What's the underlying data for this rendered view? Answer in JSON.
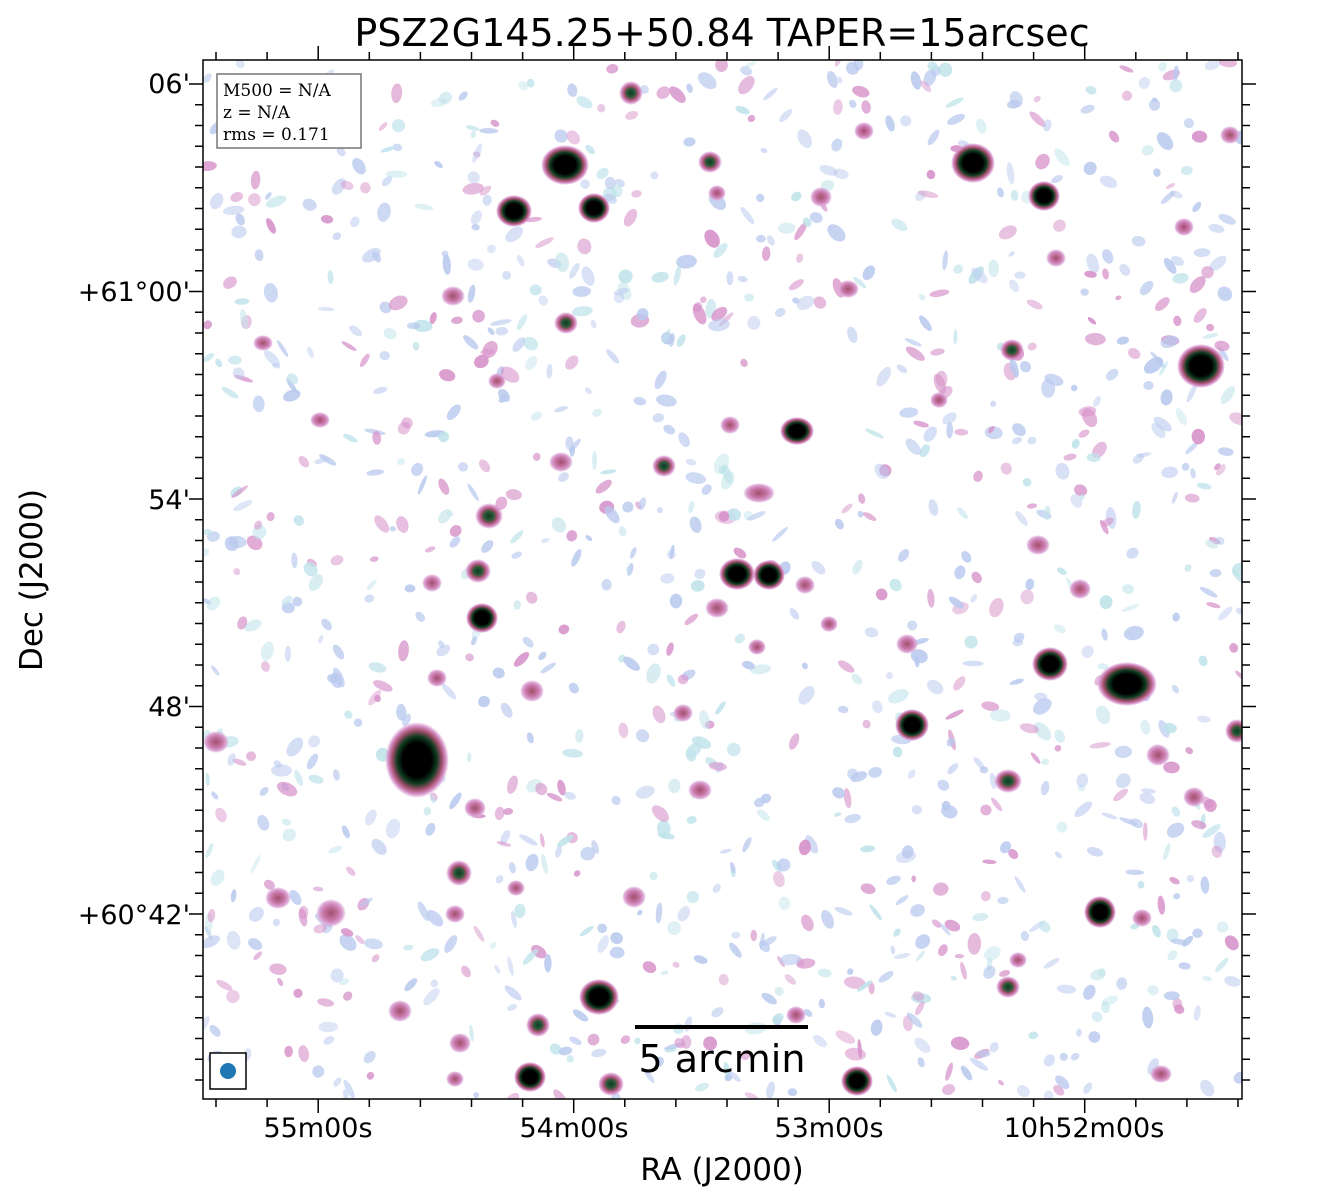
{
  "figure": {
    "title": "PSZ2G145.25+50.84 TAPER=15arcsec",
    "xlabel": "RA (J2000)",
    "ylabel": "Dec (J2000)",
    "x_ticks": [
      "55m00s",
      "54m00s",
      "53m00s",
      "10h52m00s"
    ],
    "y_ticks": [
      "06'",
      "+61°00'",
      "54'",
      "48'",
      "+60°42'"
    ],
    "info_box": [
      "M500 = N/A",
      "z = N/A",
      "rms = 0.171"
    ],
    "scale_bar_label": "5 arcmin",
    "colors": {
      "background": "#ffffff",
      "faint_emission": "#b9c9ee",
      "faint_cyan": "#bfe3ea",
      "mid_emission": "#d691c9",
      "bright_emission": "#a24f6b",
      "core": "#0b2a16",
      "beam": "#1f77b4",
      "frame": "#000000"
    }
  }
}
